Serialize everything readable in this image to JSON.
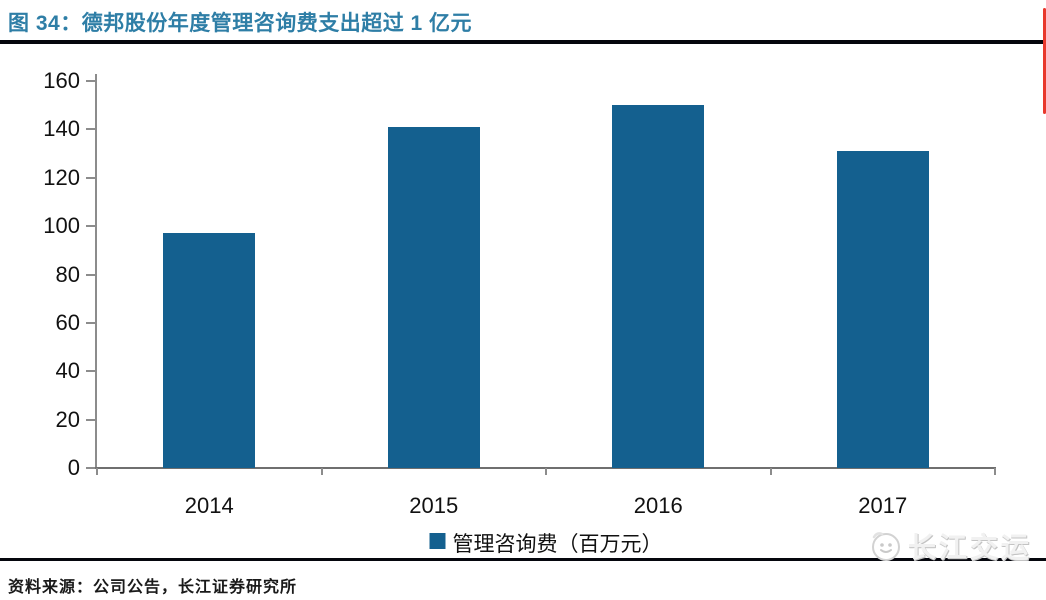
{
  "figure": {
    "title": "图 34：德邦股份年度管理咨询费支出超过 1 亿元",
    "source": "资料来源：公司公告，长江证券研究所",
    "watermark": "长江交运"
  },
  "chart_data": {
    "type": "bar",
    "categories": [
      "2014",
      "2015",
      "2016",
      "2017"
    ],
    "values": [
      97,
      141,
      150,
      131
    ],
    "series_name": "管理咨询费（百万元）",
    "title": "",
    "xlabel": "",
    "ylabel": "",
    "ylim": [
      0,
      160
    ],
    "yticks": [
      0,
      20,
      40,
      60,
      80,
      100,
      120,
      140,
      160
    ],
    "grid": false,
    "legend_position": "bottom",
    "bar_color": "#14608F"
  },
  "colors": {
    "title_text": "#2E7EA6",
    "bar": "#14608F",
    "axis": "#8c8c8c",
    "divider": "#05060D",
    "edge_accent": "#E8382C"
  }
}
